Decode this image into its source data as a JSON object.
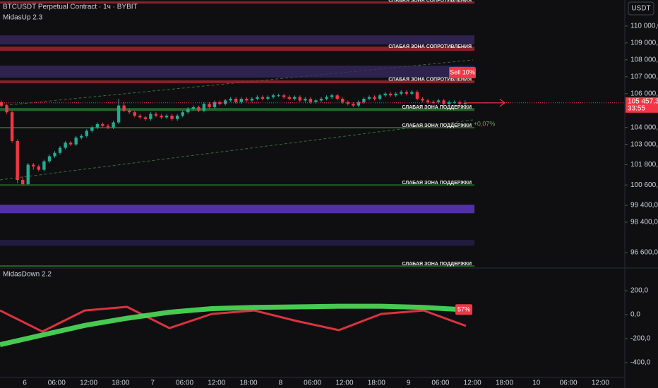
{
  "header": {
    "symbol": "BTCUSDT Perpetual Contract · 1ч · BYBIT",
    "indicator": "MidasUp 2.3",
    "currency": "USDT"
  },
  "time_labels": [
    "6",
    "06:00",
    "12:00",
    "18:00",
    "7",
    "06:00",
    "12:00",
    "18:00",
    "8",
    "06:00",
    "12:00",
    "18:00",
    "9",
    "06:00",
    "12:00",
    "18:00",
    "10",
    "06:00",
    "12:00"
  ],
  "chart_data": [
    {
      "type": "candlestick",
      "ylim": [
        95770,
        111540
      ],
      "yticks": [
        {
          "value": 110000,
          "label": "110 000,0"
        },
        {
          "value": 109000,
          "label": "109 000,0"
        },
        {
          "value": 108000,
          "label": "108 000,0"
        },
        {
          "value": 107000,
          "label": "107 000,0"
        },
        {
          "value": 106000,
          "label": "106 000,0"
        },
        {
          "value": 104000,
          "label": "104 000,0"
        },
        {
          "value": 103000,
          "label": "103 000,0"
        },
        {
          "value": 101800,
          "label": "101 800,0"
        },
        {
          "value": 100600,
          "label": "100 600,0"
        },
        {
          "value": 99400,
          "label": "99 400,0"
        },
        {
          "value": 98400,
          "label": "98 400,0"
        },
        {
          "value": 96600,
          "label": "96 600,0"
        }
      ],
      "up_color": "#22ab94",
      "down_color": "#f23645",
      "open": [
        105500,
        105300,
        104900,
        103200,
        100900,
        100650,
        101800,
        101700,
        101500,
        102000,
        102300,
        102500,
        102800,
        103100,
        103000,
        103400,
        103500,
        103800,
        104000,
        104200,
        104100,
        104000,
        104300,
        105300,
        105000,
        104900,
        104700,
        104600,
        104500,
        104800,
        104700,
        104600,
        104700,
        104500,
        104700,
        104900,
        105100,
        105200,
        105000,
        105400,
        105200,
        105500,
        105400,
        105600,
        105700,
        105500,
        105700,
        105600,
        105700,
        105800,
        105700,
        105800,
        105900,
        105900,
        105800,
        105700,
        105800,
        105600,
        105700,
        105500,
        105600,
        105700,
        105800,
        105900,
        105700,
        105500,
        105400,
        105300,
        105500,
        105700,
        105800,
        105700,
        105900,
        106000,
        105900,
        106000,
        106100,
        106000,
        106100,
        105700,
        105600,
        105500,
        105500,
        105600,
        105400,
        105500,
        105500,
        105400
      ],
      "high": [
        105600,
        105400,
        105000,
        103300,
        101100,
        101900,
        101900,
        101800,
        102100,
        102400,
        102600,
        102900,
        103200,
        103200,
        103500,
        103600,
        103900,
        104100,
        104300,
        104300,
        104200,
        104400,
        105700,
        105500,
        105100,
        105000,
        104800,
        104700,
        104900,
        104900,
        104800,
        104800,
        104800,
        104800,
        105000,
        105200,
        105300,
        105300,
        105500,
        105500,
        105600,
        105600,
        105700,
        105800,
        105800,
        105800,
        105800,
        105800,
        105900,
        105900,
        105900,
        106000,
        106000,
        106000,
        105900,
        105900,
        105900,
        105800,
        105800,
        105700,
        105800,
        105900,
        106000,
        106000,
        105800,
        105600,
        105500,
        105600,
        105800,
        105900,
        105900,
        106000,
        106100,
        106100,
        106100,
        106200,
        106200,
        106200,
        106200,
        105800,
        105700,
        105600,
        105700,
        105700,
        105600,
        105600,
        105600,
        105600
      ],
      "low": [
        105200,
        104800,
        103100,
        100700,
        100560,
        100600,
        101500,
        101400,
        101400,
        101900,
        102200,
        102400,
        102700,
        102900,
        102900,
        103300,
        103400,
        103700,
        103900,
        104000,
        103900,
        103900,
        104200,
        104900,
        104800,
        104600,
        104500,
        104400,
        104400,
        104600,
        104500,
        104500,
        104400,
        104400,
        104600,
        104800,
        105000,
        104900,
        104900,
        105100,
        105100,
        105300,
        105300,
        105500,
        105400,
        105400,
        105500,
        105500,
        105600,
        105600,
        105600,
        105700,
        105800,
        105700,
        105600,
        105600,
        105500,
        105500,
        105400,
        105400,
        105500,
        105600,
        105700,
        105600,
        105400,
        105300,
        105200,
        105200,
        105400,
        105600,
        105600,
        105600,
        105800,
        105800,
        105800,
        105900,
        105900,
        105900,
        105600,
        105500,
        105400,
        105400,
        105400,
        105300,
        105300,
        105400,
        105300,
        105300
      ],
      "close": [
        105300,
        104900,
        103200,
        100900,
        100650,
        101800,
        101700,
        101500,
        102000,
        102300,
        102500,
        102800,
        103100,
        103000,
        103400,
        103500,
        103800,
        104000,
        104200,
        104100,
        104000,
        104300,
        105300,
        105000,
        104900,
        104700,
        104600,
        104500,
        104800,
        104700,
        104600,
        104700,
        104500,
        104700,
        104900,
        105100,
        105200,
        105000,
        105400,
        105200,
        105500,
        105400,
        105600,
        105700,
        105500,
        105700,
        105600,
        105700,
        105800,
        105700,
        105800,
        105900,
        105900,
        105800,
        105700,
        105800,
        105600,
        105700,
        105500,
        105600,
        105700,
        105800,
        105900,
        105700,
        105500,
        105400,
        105300,
        105500,
        105700,
        105800,
        105700,
        105900,
        106000,
        105900,
        106000,
        106100,
        106000,
        106100,
        105700,
        105600,
        105500,
        105500,
        105600,
        105400,
        105500,
        105500,
        105400,
        105457.3
      ],
      "last_price_label": "105 457,3",
      "countdown": "33:55",
      "zones": [
        {
          "label": "СЛАБАЯ ЗОНА СОПРОТИВЛЕНИЯ",
          "top": 111460,
          "bottom": 111330,
          "color": "#b22833"
        },
        {
          "top": 109450,
          "bottom": 108910,
          "color": "#3a2a63"
        },
        {
          "label": "СЛАБАЯ ЗОНА СОПРОТИВЛЕНИЯ",
          "top": 108790,
          "bottom": 108535,
          "color": "#b22833"
        },
        {
          "top": 107660,
          "bottom": 106950,
          "color": "#3a2a63"
        },
        {
          "label": "СЛАБАЯ ЗОНА СОПРОТИВЛЕНИЯ",
          "top": 106790,
          "bottom": 106620,
          "color": "#b22833"
        },
        {
          "label": "СЛАБАЯ ЗОНА ПОДДЕРЖКИ",
          "top": 105150,
          "bottom": 104980,
          "color": "#2e7d32"
        },
        {
          "label": "СЛАБАЯ ЗОНА ПОДДЕРЖКИ",
          "top": 104030,
          "bottom": 103950,
          "color": "#2e7d32"
        },
        {
          "label": "СЛАБАЯ ЗОНА ПОДДЕРЖКИ",
          "top": 100640,
          "bottom": 100560,
          "color": "#2e7d32"
        },
        {
          "top": 99430,
          "bottom": 98930,
          "color": "#6a3cd8"
        },
        {
          "top": 97350,
          "bottom": 97010,
          "color": "#2a2050"
        },
        {
          "label": "СЛАБАЯ ЗОНА ПОДДЕРЖКИ",
          "top": 95850,
          "bottom": 95770,
          "color": "#2e7d32"
        }
      ],
      "annotations": [
        "Sell 10%",
        "+0,07%"
      ]
    },
    {
      "type": "line",
      "title": "MidasDown 2.2",
      "ylim": [
        -523,
        388
      ],
      "yticks": [
        {
          "value": 200,
          "label": "200,0"
        },
        {
          "value": 0,
          "label": "0,0"
        },
        {
          "value": -200,
          "label": "-200,0"
        },
        {
          "value": -400,
          "label": "-400,0"
        }
      ],
      "series": [
        {
          "color": "#f23645",
          "values": [
            35,
            -141,
            35,
            65,
            -112,
            6,
            35,
            -53,
            -129,
            6,
            35,
            -94
          ]
        },
        {
          "color": "#4cdf5a",
          "values": [
            -250,
            -170,
            -90,
            -30,
            20,
            50,
            60,
            65,
            70,
            70,
            60,
            40
          ]
        }
      ],
      "annotation": "57%"
    }
  ]
}
